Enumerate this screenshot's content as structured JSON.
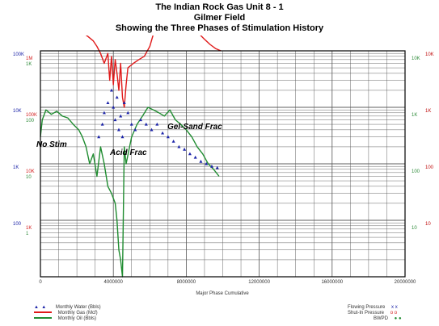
{
  "titles": [
    "The Indian Rock Gas Unit 8 - 1",
    "Gilmer Field",
    "Showing the Three Phases of Stimulation History"
  ],
  "chart_data": {
    "type": "line",
    "title": "The Indian Rock Gas Unit 8 - 1 / Gilmer Field / Showing the Three Phases of Stimulation History",
    "xlabel": "Major Phase Cumulative",
    "xlim": [
      0,
      20000000
    ],
    "x_ticks": [
      "0",
      "4000000",
      "8000000",
      "12000000",
      "16000000",
      "20000000"
    ],
    "y_scale": "log",
    "y_axes": {
      "left_outer": {
        "color": "#1c24a8",
        "ticks": [
          "100K",
          "10K",
          "1K",
          "100"
        ]
      },
      "left_inner": {
        "color": "#d42020",
        "ticks": [
          "1M",
          "100K",
          "10K",
          "1K"
        ]
      },
      "left_inner_low": {
        "color": "#2e8b3a",
        "ticks": [
          "1K",
          "100",
          "10",
          "1"
        ]
      },
      "right_outer": {
        "color": "#c01010",
        "ticks": [
          "10K",
          "1K",
          "100",
          "10"
        ]
      },
      "right_inner": {
        "color": "#2e8b3a",
        "ticks": [
          "10K",
          "1K",
          "100",
          "10"
        ]
      }
    },
    "annotations": [
      "No Stim",
      "Acid Frac",
      "Gel-Sand Frac"
    ],
    "grid": true,
    "colors": {
      "water": "#1c24a8",
      "gas": "#e01a1a",
      "oil": "#1f8c30",
      "frame": "#000000",
      "grid": "#555555"
    },
    "series": [
      {
        "name": "Monthly Gas (Mcf)",
        "color": "#e01a1a",
        "points": [
          [
            0,
            50000
          ],
          [
            100000,
            70000
          ],
          [
            250000,
            40000
          ],
          [
            500000,
            32000
          ],
          [
            800000,
            28000
          ],
          [
            1100000,
            27000
          ],
          [
            1400000,
            25000
          ],
          [
            1700000,
            24000
          ],
          [
            2000000,
            23000
          ],
          [
            2300000,
            21000
          ],
          [
            2600000,
            18000
          ],
          [
            2900000,
            15000
          ],
          [
            3100000,
            12000
          ],
          [
            3300000,
            9000
          ],
          [
            3500000,
            6000
          ],
          [
            3700000,
            9000
          ],
          [
            3800000,
            3000
          ],
          [
            3900000,
            8000
          ],
          [
            4000000,
            2500
          ],
          [
            4100000,
            7000
          ],
          [
            4200000,
            4000
          ],
          [
            4300000,
            2000
          ],
          [
            4400000,
            6000
          ],
          [
            4500000,
            1500
          ],
          [
            4600000,
            1000
          ],
          [
            4700000,
            2500
          ],
          [
            4800000,
            5000
          ],
          [
            5100000,
            6000
          ],
          [
            5400000,
            7000
          ],
          [
            5700000,
            8000
          ],
          [
            6000000,
            12000
          ],
          [
            6200000,
            20000
          ],
          [
            6500000,
            60000
          ],
          [
            6600000,
            100000
          ],
          [
            6700000,
            60000
          ],
          [
            6900000,
            50000
          ],
          [
            7200000,
            45000
          ],
          [
            7500000,
            40000
          ],
          [
            7800000,
            38000
          ],
          [
            8100000,
            32000
          ],
          [
            8400000,
            25000
          ],
          [
            8700000,
            20000
          ],
          [
            9000000,
            16000
          ],
          [
            9300000,
            13000
          ],
          [
            9600000,
            11000
          ],
          [
            9900000,
            10000
          ]
        ]
      },
      {
        "name": "Monthly Oil (Bbls)",
        "color": "#1f8c30",
        "points": [
          [
            0,
            300
          ],
          [
            100000,
            600
          ],
          [
            300000,
            900
          ],
          [
            600000,
            750
          ],
          [
            900000,
            850
          ],
          [
            1200000,
            700
          ],
          [
            1500000,
            650
          ],
          [
            1800000,
            500
          ],
          [
            2100000,
            400
          ],
          [
            2300000,
            300
          ],
          [
            2500000,
            200
          ],
          [
            2700000,
            100
          ],
          [
            2900000,
            150
          ],
          [
            3100000,
            60
          ],
          [
            3300000,
            200
          ],
          [
            3500000,
            100
          ],
          [
            3700000,
            40
          ],
          [
            3900000,
            30
          ],
          [
            4100000,
            20
          ],
          [
            4200000,
            10
          ],
          [
            4300000,
            3
          ],
          [
            4400000,
            2
          ],
          [
            4500000,
            1
          ],
          [
            4600000,
            200
          ],
          [
            4700000,
            100
          ],
          [
            5000000,
            300
          ],
          [
            5300000,
            500
          ],
          [
            5600000,
            700
          ],
          [
            5900000,
            1000
          ],
          [
            6200000,
            900
          ],
          [
            6500000,
            800
          ],
          [
            6800000,
            700
          ],
          [
            7100000,
            900
          ],
          [
            7400000,
            600
          ],
          [
            7700000,
            500
          ],
          [
            8000000,
            400
          ],
          [
            8300000,
            300
          ],
          [
            8600000,
            200
          ],
          [
            8900000,
            150
          ],
          [
            9200000,
            100
          ],
          [
            9500000,
            80
          ],
          [
            9800000,
            60
          ]
        ]
      },
      {
        "name": "Monthly Water (Bbls)",
        "color": "#1c24a8",
        "points": [
          [
            3200000,
            300
          ],
          [
            3400000,
            500
          ],
          [
            3500000,
            800
          ],
          [
            3700000,
            1200
          ],
          [
            3900000,
            2000
          ],
          [
            4000000,
            1000
          ],
          [
            4100000,
            600
          ],
          [
            4200000,
            1500
          ],
          [
            4300000,
            400
          ],
          [
            4400000,
            700
          ],
          [
            4500000,
            300
          ],
          [
            4600000,
            1200
          ],
          [
            4800000,
            800
          ],
          [
            5000000,
            500
          ],
          [
            5200000,
            400
          ],
          [
            5500000,
            600
          ],
          [
            5800000,
            500
          ],
          [
            6100000,
            400
          ],
          [
            6400000,
            500
          ],
          [
            6700000,
            350
          ],
          [
            7000000,
            300
          ],
          [
            7300000,
            250
          ],
          [
            7600000,
            200
          ],
          [
            7900000,
            180
          ],
          [
            8200000,
            150
          ],
          [
            8500000,
            130
          ],
          [
            8800000,
            110
          ],
          [
            9100000,
            100
          ],
          [
            9400000,
            90
          ],
          [
            9700000,
            85
          ]
        ]
      }
    ]
  },
  "legend": {
    "left": [
      "Monthly Water (Bbls)",
      "Monthly Gas (Mcf)",
      "Monthly Oil (Bbls)"
    ],
    "right": [
      "Flowing Pressure",
      "Shut-In Pressure",
      "BWPD"
    ],
    "right_markers": [
      "x  x",
      "o  o",
      "●  ●"
    ]
  }
}
